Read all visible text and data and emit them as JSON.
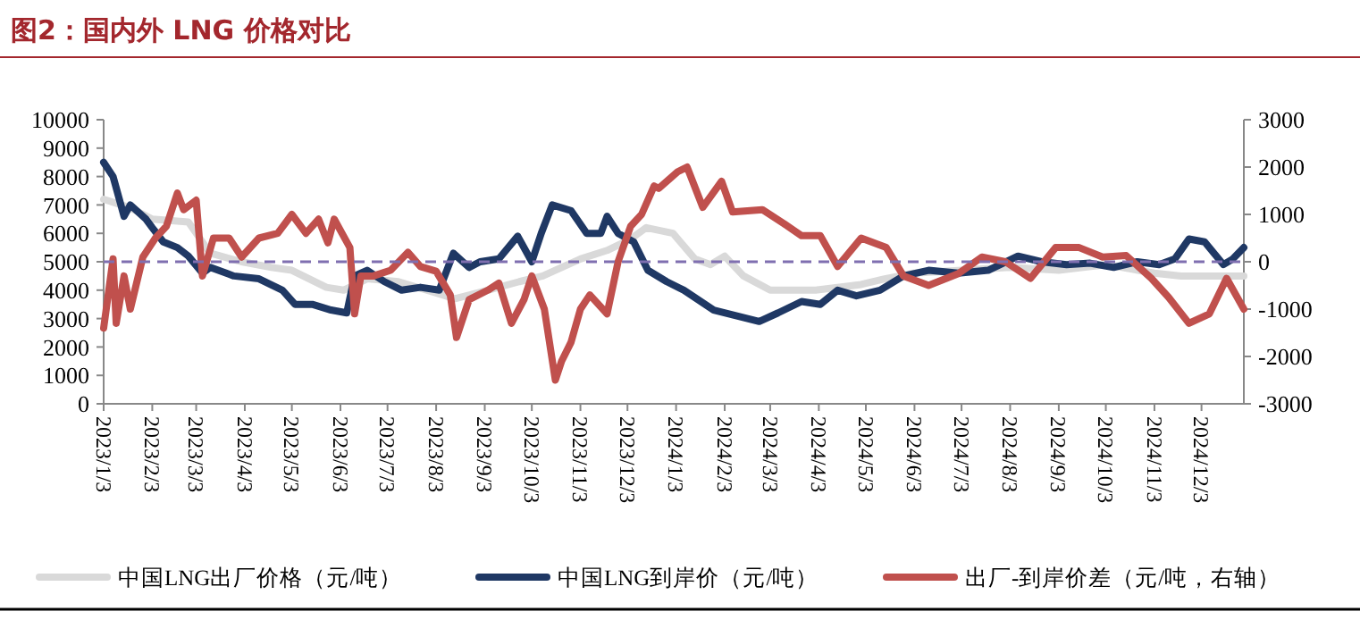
{
  "chart_data": {
    "type": "line",
    "title": "图2：国内外 LNG 价格对比",
    "xlim": [
      "2023-01-03",
      "2024-12-30"
    ],
    "xticks": [
      {
        "value": "2023-01-03",
        "label": "2023/1/3"
      },
      {
        "value": "2023-02-03",
        "label": "2023/2/3"
      },
      {
        "value": "2023-03-03",
        "label": "2023/3/3"
      },
      {
        "value": "2023-04-03",
        "label": "2023/4/3"
      },
      {
        "value": "2023-05-03",
        "label": "2023/5/3"
      },
      {
        "value": "2023-06-03",
        "label": "2023/6/3"
      },
      {
        "value": "2023-07-03",
        "label": "2023/7/3"
      },
      {
        "value": "2023-08-03",
        "label": "2023/8/3"
      },
      {
        "value": "2023-09-03",
        "label": "2023/9/3"
      },
      {
        "value": "2023-10-03",
        "label": "2023/10/3"
      },
      {
        "value": "2023-11-03",
        "label": "2023/11/3"
      },
      {
        "value": "2023-12-03",
        "label": "2023/12/3"
      },
      {
        "value": "2024-01-03",
        "label": "2024/1/3"
      },
      {
        "value": "2024-02-03",
        "label": "2024/2/3"
      },
      {
        "value": "2024-03-03",
        "label": "2024/3/3"
      },
      {
        "value": "2024-04-03",
        "label": "2024/4/3"
      },
      {
        "value": "2024-05-03",
        "label": "2024/5/3"
      },
      {
        "value": "2024-06-03",
        "label": "2024/6/3"
      },
      {
        "value": "2024-07-03",
        "label": "2024/7/3"
      },
      {
        "value": "2024-08-03",
        "label": "2024/8/3"
      },
      {
        "value": "2024-09-03",
        "label": "2024/9/3"
      },
      {
        "value": "2024-10-03",
        "label": "2024/10/3"
      },
      {
        "value": "2024-11-03",
        "label": "2024/11/3"
      },
      {
        "value": "2024-12-03",
        "label": "2024/12/3"
      }
    ],
    "ylim": [
      0,
      10000
    ],
    "yticks": [
      0,
      1000,
      2000,
      3000,
      4000,
      5000,
      6000,
      7000,
      8000,
      9000,
      10000
    ],
    "y2lim": [
      -3000,
      3000
    ],
    "y2ticks": [
      -3000,
      -2000,
      -1000,
      0,
      1000,
      2000,
      3000
    ],
    "legend": "bottom",
    "grid": false,
    "ref_lines": [
      {
        "axis": "y2",
        "value": 0,
        "color": "#7f6fb0",
        "line_style": "dashed"
      }
    ],
    "series": [
      {
        "name": "中国LNG出厂价格（元/吨）",
        "color": "#d9d9d9",
        "x": [
          "2023-01-03",
          "2023-01-20",
          "2023-02-03",
          "2023-02-26",
          "2023-03-12",
          "2023-04-01",
          "2023-04-20",
          "2023-05-03",
          "2023-05-25",
          "2023-06-05",
          "2023-06-20",
          "2023-07-10",
          "2023-08-03",
          "2023-08-15",
          "2023-09-05",
          "2023-09-25",
          "2023-10-10",
          "2023-11-03",
          "2023-11-20",
          "2023-12-05",
          "2023-12-15",
          "2024-01-01",
          "2024-01-15",
          "2024-01-25",
          "2024-02-03",
          "2024-02-15",
          "2024-03-03",
          "2024-04-01",
          "2024-04-30",
          "2024-05-15",
          "2024-06-03",
          "2024-07-03",
          "2024-08-03",
          "2024-09-03",
          "2024-10-03",
          "2024-11-03",
          "2024-11-20",
          "2024-12-30"
        ],
        "values": [
          7200,
          6900,
          6500,
          6400,
          5300,
          5000,
          4800,
          4700,
          4100,
          4000,
          4400,
          4300,
          3900,
          3700,
          4000,
          4300,
          4500,
          5100,
          5400,
          5800,
          6200,
          6000,
          5100,
          4900,
          5200,
          4500,
          4000,
          4000,
          4200,
          4400,
          4600,
          4700,
          4800,
          4700,
          4900,
          4600,
          4500,
          4500
        ]
      },
      {
        "name": "中国LNG到岸价（元/吨）",
        "color": "#1f3864",
        "x": [
          "2023-01-03",
          "2023-01-09",
          "2023-01-16",
          "2023-01-20",
          "2023-01-30",
          "2023-02-03",
          "2023-02-10",
          "2023-02-19",
          "2023-02-26",
          "2023-03-07",
          "2023-03-12",
          "2023-03-27",
          "2023-04-12",
          "2023-04-27",
          "2023-05-05",
          "2023-05-16",
          "2023-05-28",
          "2023-06-07",
          "2023-06-12",
          "2023-06-20",
          "2023-07-01",
          "2023-07-12",
          "2023-07-24",
          "2023-08-05",
          "2023-08-14",
          "2023-08-24",
          "2023-08-31",
          "2023-09-12",
          "2023-09-24",
          "2023-10-03",
          "2023-10-09",
          "2023-10-16",
          "2023-10-28",
          "2023-11-07",
          "2023-11-16",
          "2023-11-20",
          "2023-11-27",
          "2023-12-07",
          "2023-12-16",
          "2023-12-28",
          "2024-01-08",
          "2024-01-27",
          "2024-02-25",
          "2024-03-08",
          "2024-03-23",
          "2024-04-04",
          "2024-04-15",
          "2024-04-27",
          "2024-05-12",
          "2024-05-27",
          "2024-06-12",
          "2024-07-01",
          "2024-07-20",
          "2024-08-08",
          "2024-08-23",
          "2024-09-08",
          "2024-09-23",
          "2024-10-08",
          "2024-10-23",
          "2024-11-06",
          "2024-11-16",
          "2024-11-25",
          "2024-12-05",
          "2024-12-17",
          "2024-12-23",
          "2024-12-30"
        ],
        "values": [
          8500,
          8000,
          6600,
          7000,
          6500,
          6200,
          5700,
          5500,
          5200,
          4600,
          4800,
          4500,
          4400,
          4000,
          3500,
          3500,
          3300,
          3200,
          4500,
          4700,
          4300,
          4000,
          4100,
          4000,
          5300,
          4800,
          5000,
          5100,
          5900,
          5000,
          6000,
          7000,
          6800,
          6000,
          6000,
          6600,
          6000,
          5700,
          4700,
          4300,
          4000,
          3300,
          2900,
          3200,
          3600,
          3500,
          4000,
          3800,
          4000,
          4500,
          4700,
          4600,
          4700,
          5200,
          5000,
          4900,
          4950,
          4800,
          5000,
          4900,
          5100,
          5800,
          5700,
          4900,
          5100,
          5500
        ]
      },
      {
        "name": "出厂-到岸价差（元/吨，右轴）",
        "color": "#c0504d",
        "axis": "y2",
        "x": [
          "2023-01-03",
          "2023-01-09",
          "2023-01-11",
          "2023-01-16",
          "2023-01-20",
          "2023-01-28",
          "2023-02-05",
          "2023-02-12",
          "2023-02-19",
          "2023-02-23",
          "2023-03-03",
          "2023-03-07",
          "2023-03-14",
          "2023-03-24",
          "2023-04-01",
          "2023-04-12",
          "2023-04-24",
          "2023-05-03",
          "2023-05-12",
          "2023-05-20",
          "2023-05-26",
          "2023-05-30",
          "2023-06-09",
          "2023-06-12",
          "2023-06-16",
          "2023-06-24",
          "2023-07-05",
          "2023-07-16",
          "2023-07-24",
          "2023-08-03",
          "2023-08-12",
          "2023-08-16",
          "2023-08-24",
          "2023-09-05",
          "2023-09-12",
          "2023-09-20",
          "2023-09-28",
          "2023-10-03",
          "2023-10-11",
          "2023-10-18",
          "2023-10-22",
          "2023-10-28",
          "2023-11-03",
          "2023-11-09",
          "2023-11-20",
          "2023-11-27",
          "2023-12-05",
          "2023-12-12",
          "2023-12-20",
          "2023-12-23",
          "2024-01-04",
          "2024-01-10",
          "2024-01-20",
          "2024-02-01",
          "2024-02-08",
          "2024-02-27",
          "2024-03-12",
          "2024-03-23",
          "2024-04-04",
          "2024-04-15",
          "2024-04-30",
          "2024-05-16",
          "2024-05-27",
          "2024-06-12",
          "2024-07-01",
          "2024-07-16",
          "2024-07-31",
          "2024-08-16",
          "2024-09-01",
          "2024-09-16",
          "2024-10-01",
          "2024-10-16",
          "2024-11-01",
          "2024-11-12",
          "2024-11-25",
          "2024-12-08",
          "2024-12-19",
          "2024-12-30"
        ],
        "values": [
          -1400,
          60,
          -1300,
          -300,
          -1000,
          100,
          500,
          750,
          1450,
          1100,
          1300,
          -300,
          500,
          500,
          100,
          500,
          600,
          1000,
          600,
          900,
          400,
          900,
          300,
          -1100,
          -300,
          -300,
          -180,
          200,
          -100,
          -200,
          -700,
          -1600,
          -800,
          -600,
          -450,
          -1300,
          -800,
          -300,
          -1000,
          -2500,
          -2100,
          -1700,
          -1000,
          -700,
          -1100,
          0,
          750,
          1000,
          1600,
          1550,
          1900,
          2000,
          1150,
          1700,
          1050,
          1100,
          800,
          550,
          550,
          -100,
          500,
          300,
          -300,
          -500,
          -250,
          100,
          0,
          -350,
          300,
          300,
          100,
          130,
          -350,
          -750,
          -1300,
          -1100,
          -350,
          -1000
        ]
      }
    ]
  }
}
